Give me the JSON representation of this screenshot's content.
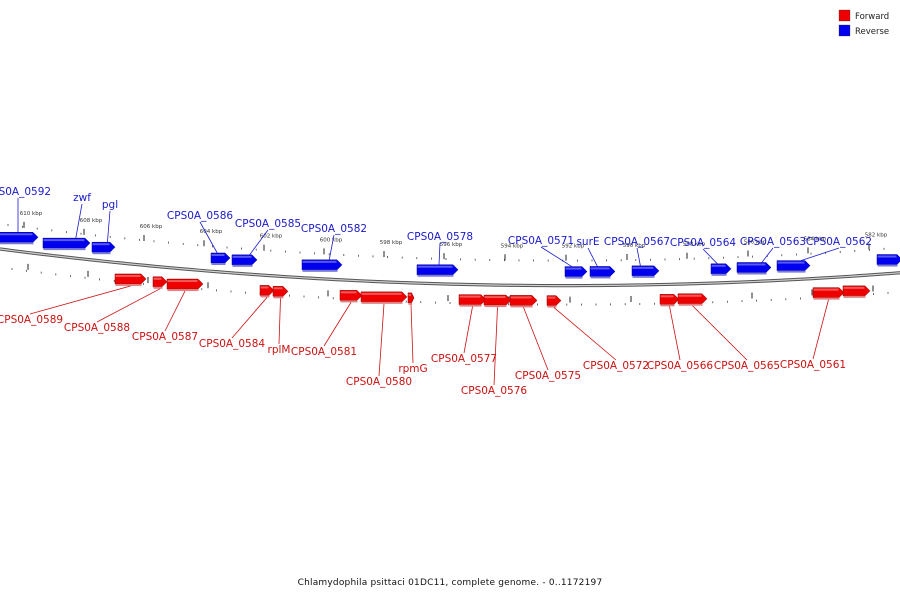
{
  "caption": "Chlamydophila psittaci 01DC11, complete genome. - 0..1172197",
  "legend": [
    {
      "label": "Forward",
      "color": "#ee0000"
    },
    {
      "label": "Reverse",
      "color": "#0000ee"
    }
  ],
  "axis": {
    "tick_labels": [
      "610 kbp",
      "608 kbp",
      "606 kbp",
      "604 kbp",
      "602 kbp",
      "600 kbp",
      "598 kbp",
      "596 kbp",
      "594 kbp",
      "592 kbp",
      "590 kbp",
      "588 kbp",
      "586 kbp",
      "584 kbp",
      "582 kbp"
    ]
  },
  "colors": {
    "forward": "#ee0000",
    "reverse": "#0000ee",
    "forward_label": "#cc1111",
    "reverse_label": "#1a1acc",
    "backbone": "#777777"
  },
  "genes": {
    "reverse": [
      {
        "name": "CPS0A_0592"
      },
      {
        "name": "zwf"
      },
      {
        "name": "pgl"
      },
      {
        "name": "CPS0A_0586"
      },
      {
        "name": "CPS0A_0585"
      },
      {
        "name": "CPS0A_0582"
      },
      {
        "name": "CPS0A_0578"
      },
      {
        "name": "CPS0A_0571"
      },
      {
        "name": "surE"
      },
      {
        "name": "CPS0A_0567"
      },
      {
        "name": "CPS0A_0564"
      },
      {
        "name": "CPS0A_0563"
      },
      {
        "name": "CPS0A_0562"
      }
    ],
    "forward": [
      {
        "name": "CPS0A_0589"
      },
      {
        "name": "CPS0A_0588"
      },
      {
        "name": "CPS0A_0587"
      },
      {
        "name": "CPS0A_0584"
      },
      {
        "name": "rplM"
      },
      {
        "name": "CPS0A_0581"
      },
      {
        "name": "CPS0A_0580"
      },
      {
        "name": "rpmG"
      },
      {
        "name": "CPS0A_0577"
      },
      {
        "name": "CPS0A_0576"
      },
      {
        "name": "CPS0A_0575"
      },
      {
        "name": "CPS0A_0572"
      },
      {
        "name": "CPS0A_0566"
      },
      {
        "name": "CPS0A_0565"
      },
      {
        "name": "CPS0A_0561"
      }
    ]
  }
}
